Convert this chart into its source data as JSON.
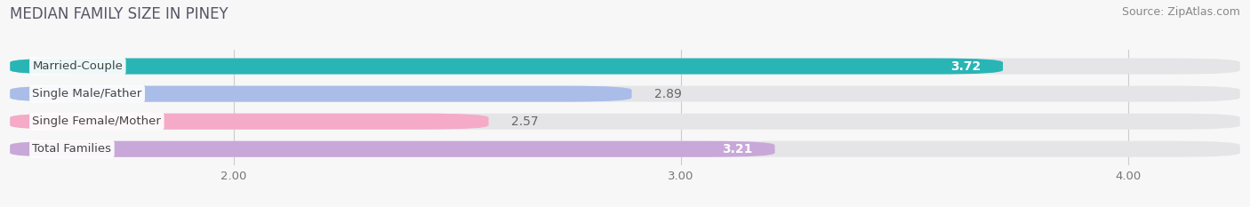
{
  "title": "MEDIAN FAMILY SIZE IN PINEY",
  "source": "Source: ZipAtlas.com",
  "categories": [
    "Married-Couple",
    "Single Male/Father",
    "Single Female/Mother",
    "Total Families"
  ],
  "values": [
    3.72,
    2.89,
    2.57,
    3.21
  ],
  "bar_colors": [
    "#29b5b5",
    "#aabde8",
    "#f5aac8",
    "#c8a8d8"
  ],
  "value_inside": [
    true,
    false,
    false,
    true
  ],
  "xmin": 1.5,
  "xmax": 4.25,
  "xticks": [
    2.0,
    3.0,
    4.0
  ],
  "xtick_labels": [
    "2.00",
    "3.00",
    "4.00"
  ],
  "title_fontsize": 12,
  "source_fontsize": 9,
  "bar_label_fontsize": 10,
  "category_fontsize": 9.5,
  "background_color": "#f7f7f7",
  "bar_bg_color": "#e5e5e8"
}
